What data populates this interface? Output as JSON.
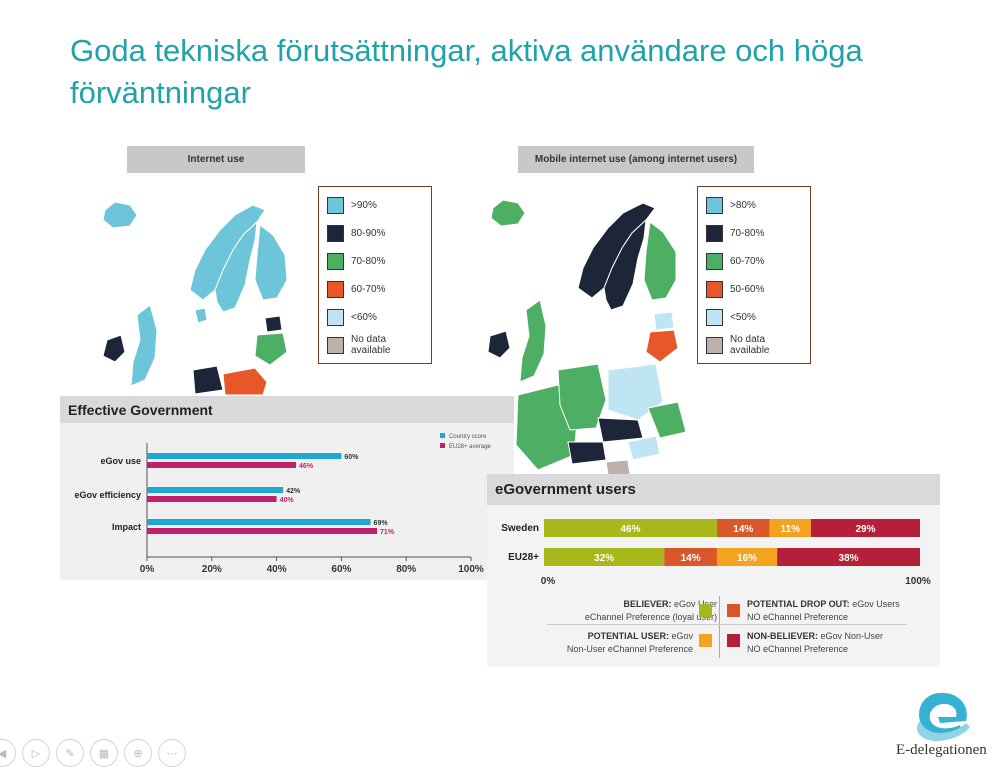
{
  "title": "Goda tekniska förutsättningar, aktiva användare och höga förväntningar",
  "maps": [
    {
      "title": "Internet use",
      "legend": [
        {
          "label": ">90%",
          "color": "#6cc5d8"
        },
        {
          "label": "80-90%",
          "color": "#1c2638"
        },
        {
          "label": "70-80%",
          "color": "#4caf63"
        },
        {
          "label": "60-70%",
          "color": "#e8572a"
        },
        {
          "label": "<60%",
          "color": "#bfe5f5"
        },
        {
          "label": "No data available",
          "color": "#bdb1a9"
        }
      ]
    },
    {
      "title": "Mobile internet use (among internet users)",
      "legend": [
        {
          "label": ">80%",
          "color": "#6cc5d8"
        },
        {
          "label": "70-80%",
          "color": "#1c2638"
        },
        {
          "label": "60-70%",
          "color": "#4caf63"
        },
        {
          "label": "50-60%",
          "color": "#e8572a"
        },
        {
          "label": "<50%",
          "color": "#bfe5f5"
        },
        {
          "label": "No data available",
          "color": "#bdb1a9"
        }
      ]
    }
  ],
  "chart_data": [
    {
      "type": "bar",
      "title": "Effective Government",
      "categories": [
        "eGov use",
        "eGov efficiency",
        "Impact"
      ],
      "series": [
        {
          "name": "Country score",
          "color": "#1ea7d2",
          "values": [
            60,
            42,
            69
          ],
          "labels": [
            "60%",
            "42%",
            "69%"
          ]
        },
        {
          "name": "EU28+ average",
          "color": "#c0206e",
          "values": [
            46,
            40,
            71
          ],
          "labels": [
            "46%",
            "40%",
            "71%"
          ]
        }
      ],
      "xlim": [
        0,
        100
      ],
      "xticks": [
        "0%",
        "20%",
        "40%",
        "60%",
        "80%",
        "100%"
      ]
    },
    {
      "type": "bar",
      "title": "eGovernment users",
      "stacked": true,
      "categories": [
        "Sweden",
        "EU28+"
      ],
      "series": [
        {
          "name": "BELIEVER",
          "color": "#a8b81a",
          "values": [
            46,
            32
          ]
        },
        {
          "name": "POTENTIAL DROP OUT",
          "color": "#d9582a",
          "values": [
            14,
            14
          ]
        },
        {
          "name": "POTENTIAL USER",
          "color": "#f4a31e",
          "values": [
            11,
            16
          ]
        },
        {
          "name": "NON-BELIEVER",
          "color": "#b51f3a",
          "values": [
            29,
            38
          ]
        }
      ],
      "xlim": [
        0,
        100
      ],
      "xticks": [
        "0%",
        "100%"
      ],
      "legend": [
        {
          "key": "BELIEVER",
          "head": "BELIEVER:",
          "text": "eGov User",
          "line2": "eChannel Preference (loyal user)",
          "color": "#a8b81a"
        },
        {
          "key": "POTENTIAL DROP OUT",
          "head": "POTENTIAL DROP OUT:",
          "text": "eGov Users",
          "line2": "NO eChannel Preference",
          "color": "#d9582a"
        },
        {
          "key": "POTENTIAL USER",
          "head": "POTENTIAL USER:",
          "text": "eGov",
          "line2": "Non-User eChannel Preference",
          "color": "#f4a31e"
        },
        {
          "key": "NON-BELIEVER",
          "head": "NON-BELIEVER:",
          "text": "eGov Non-User",
          "line2": "NO eChannel Preference",
          "color": "#b51f3a"
        }
      ]
    }
  ],
  "logo": {
    "text": "E-delegationen"
  }
}
